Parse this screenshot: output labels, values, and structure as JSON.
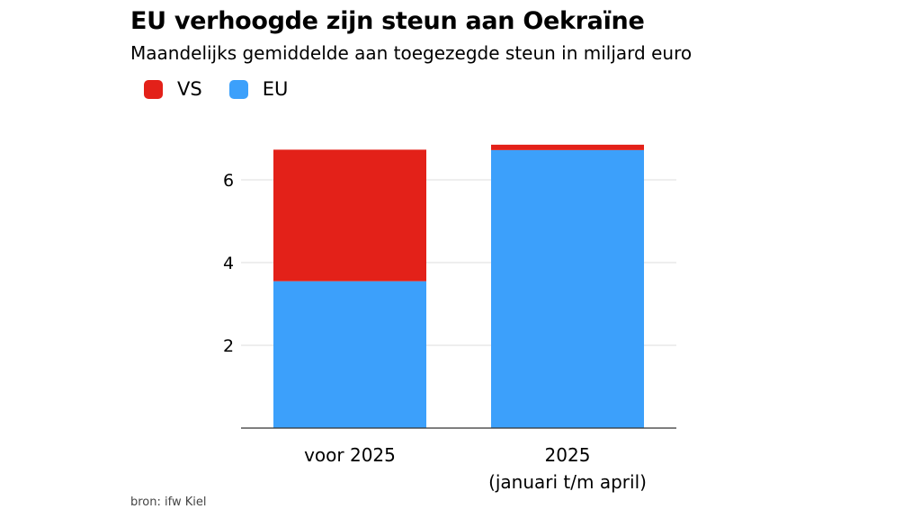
{
  "header": {
    "title": "EU verhoogde zijn steun aan Oekraïne",
    "subtitle": "Maandelijks gemiddelde aan toegezegde steun in miljard euro"
  },
  "footer": {
    "source": "bron: ifw Kiel"
  },
  "colors": {
    "VS": "#e32119",
    "EU": "#3ca0fb"
  },
  "chart_data": {
    "type": "bar",
    "stacked": true,
    "title": "EU verhoogde zijn steun aan Oekraïne",
    "subtitle": "Maandelijks gemiddelde aan toegezegde steun in miljard euro",
    "xlabel": "",
    "ylabel": "",
    "categories": [
      [
        "voor 2025"
      ],
      [
        "2025",
        "(januari t/m april)"
      ]
    ],
    "series": [
      {
        "name": "EU",
        "values": [
          3.55,
          6.72
        ]
      },
      {
        "name": "VS",
        "values": [
          3.18,
          0.13
        ]
      }
    ],
    "legend_order": [
      "VS",
      "EU"
    ],
    "yticks": [
      2,
      4,
      6
    ],
    "ylim": [
      0,
      7
    ],
    "grid": true,
    "legend_position": "top-left"
  }
}
